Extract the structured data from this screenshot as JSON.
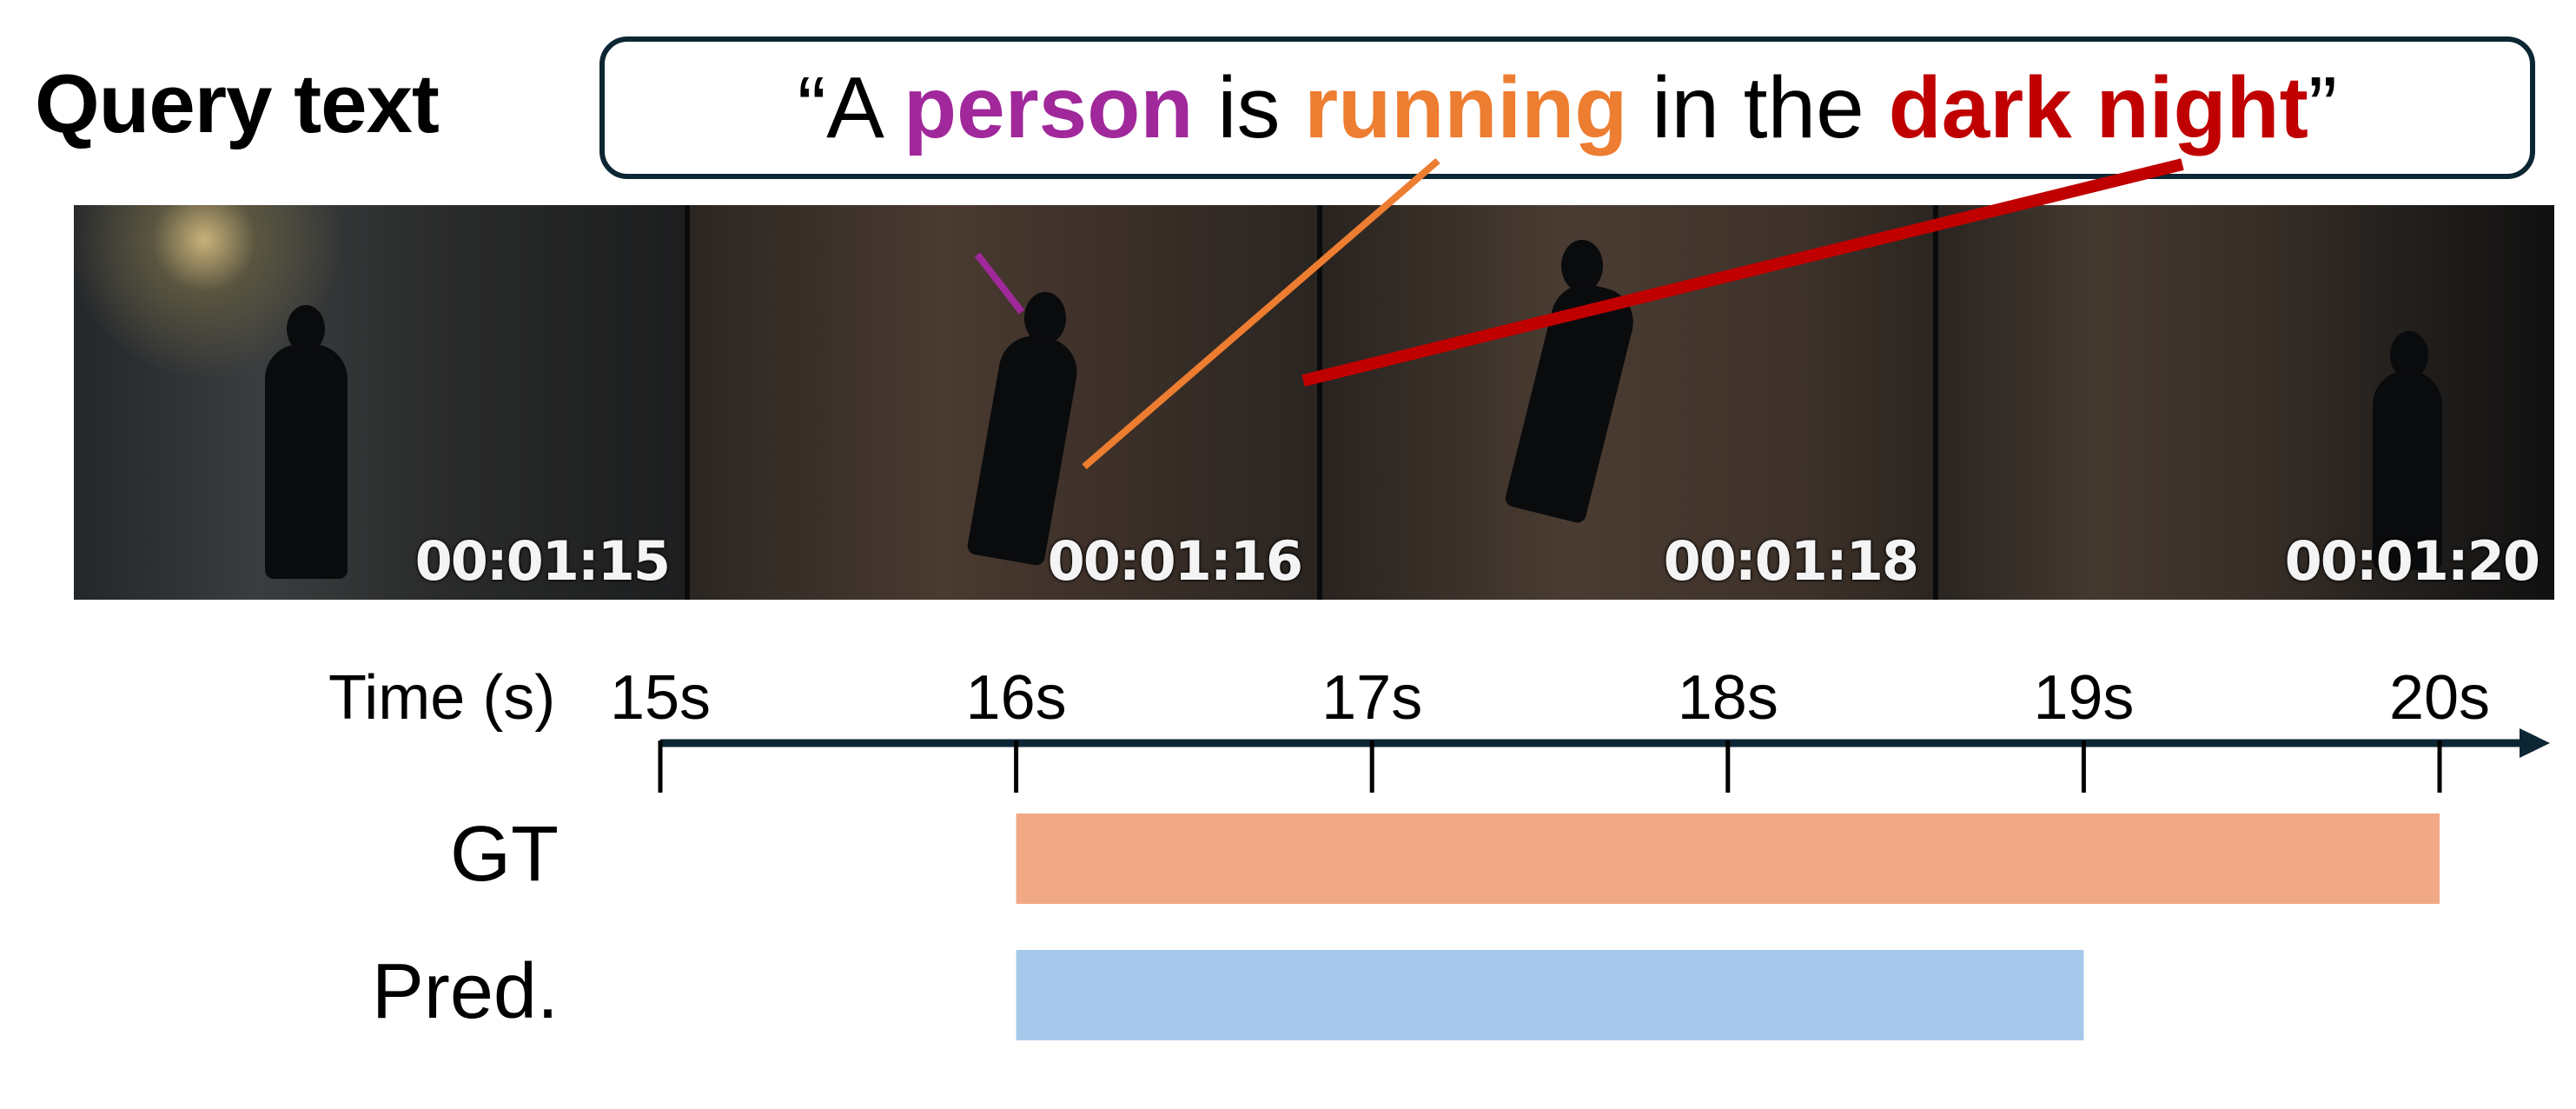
{
  "query_label": "Query text",
  "query": {
    "open_quote": "“A ",
    "person": "person",
    "is": " is ",
    "running": "running",
    "in_the": " in the ",
    "dark_night": "dark night",
    "close_quote": "”"
  },
  "colors": {
    "person": "#a0289a",
    "running": "#ed7d31",
    "dark_night": "#c00000",
    "gt_bar": "#f1a985",
    "pred_bar": "#a6c9eb",
    "axis": "#0d2633"
  },
  "frames": [
    {
      "timestamp": "00:01:15"
    },
    {
      "timestamp": "00:01:16"
    },
    {
      "timestamp": "00:01:18"
    },
    {
      "timestamp": "00:01:20"
    }
  ],
  "chart_data": {
    "type": "bar",
    "xlabel": "Time (s)",
    "xlim": [
      15,
      20
    ],
    "ticks": [
      15,
      16,
      17,
      18,
      19,
      20
    ],
    "tick_labels": [
      "15s",
      "16s",
      "17s",
      "18s",
      "19s",
      "20s"
    ],
    "series": [
      {
        "name": "GT",
        "start": 16,
        "end": 20
      },
      {
        "name": "Pred.",
        "start": 16,
        "end": 19
      }
    ]
  }
}
